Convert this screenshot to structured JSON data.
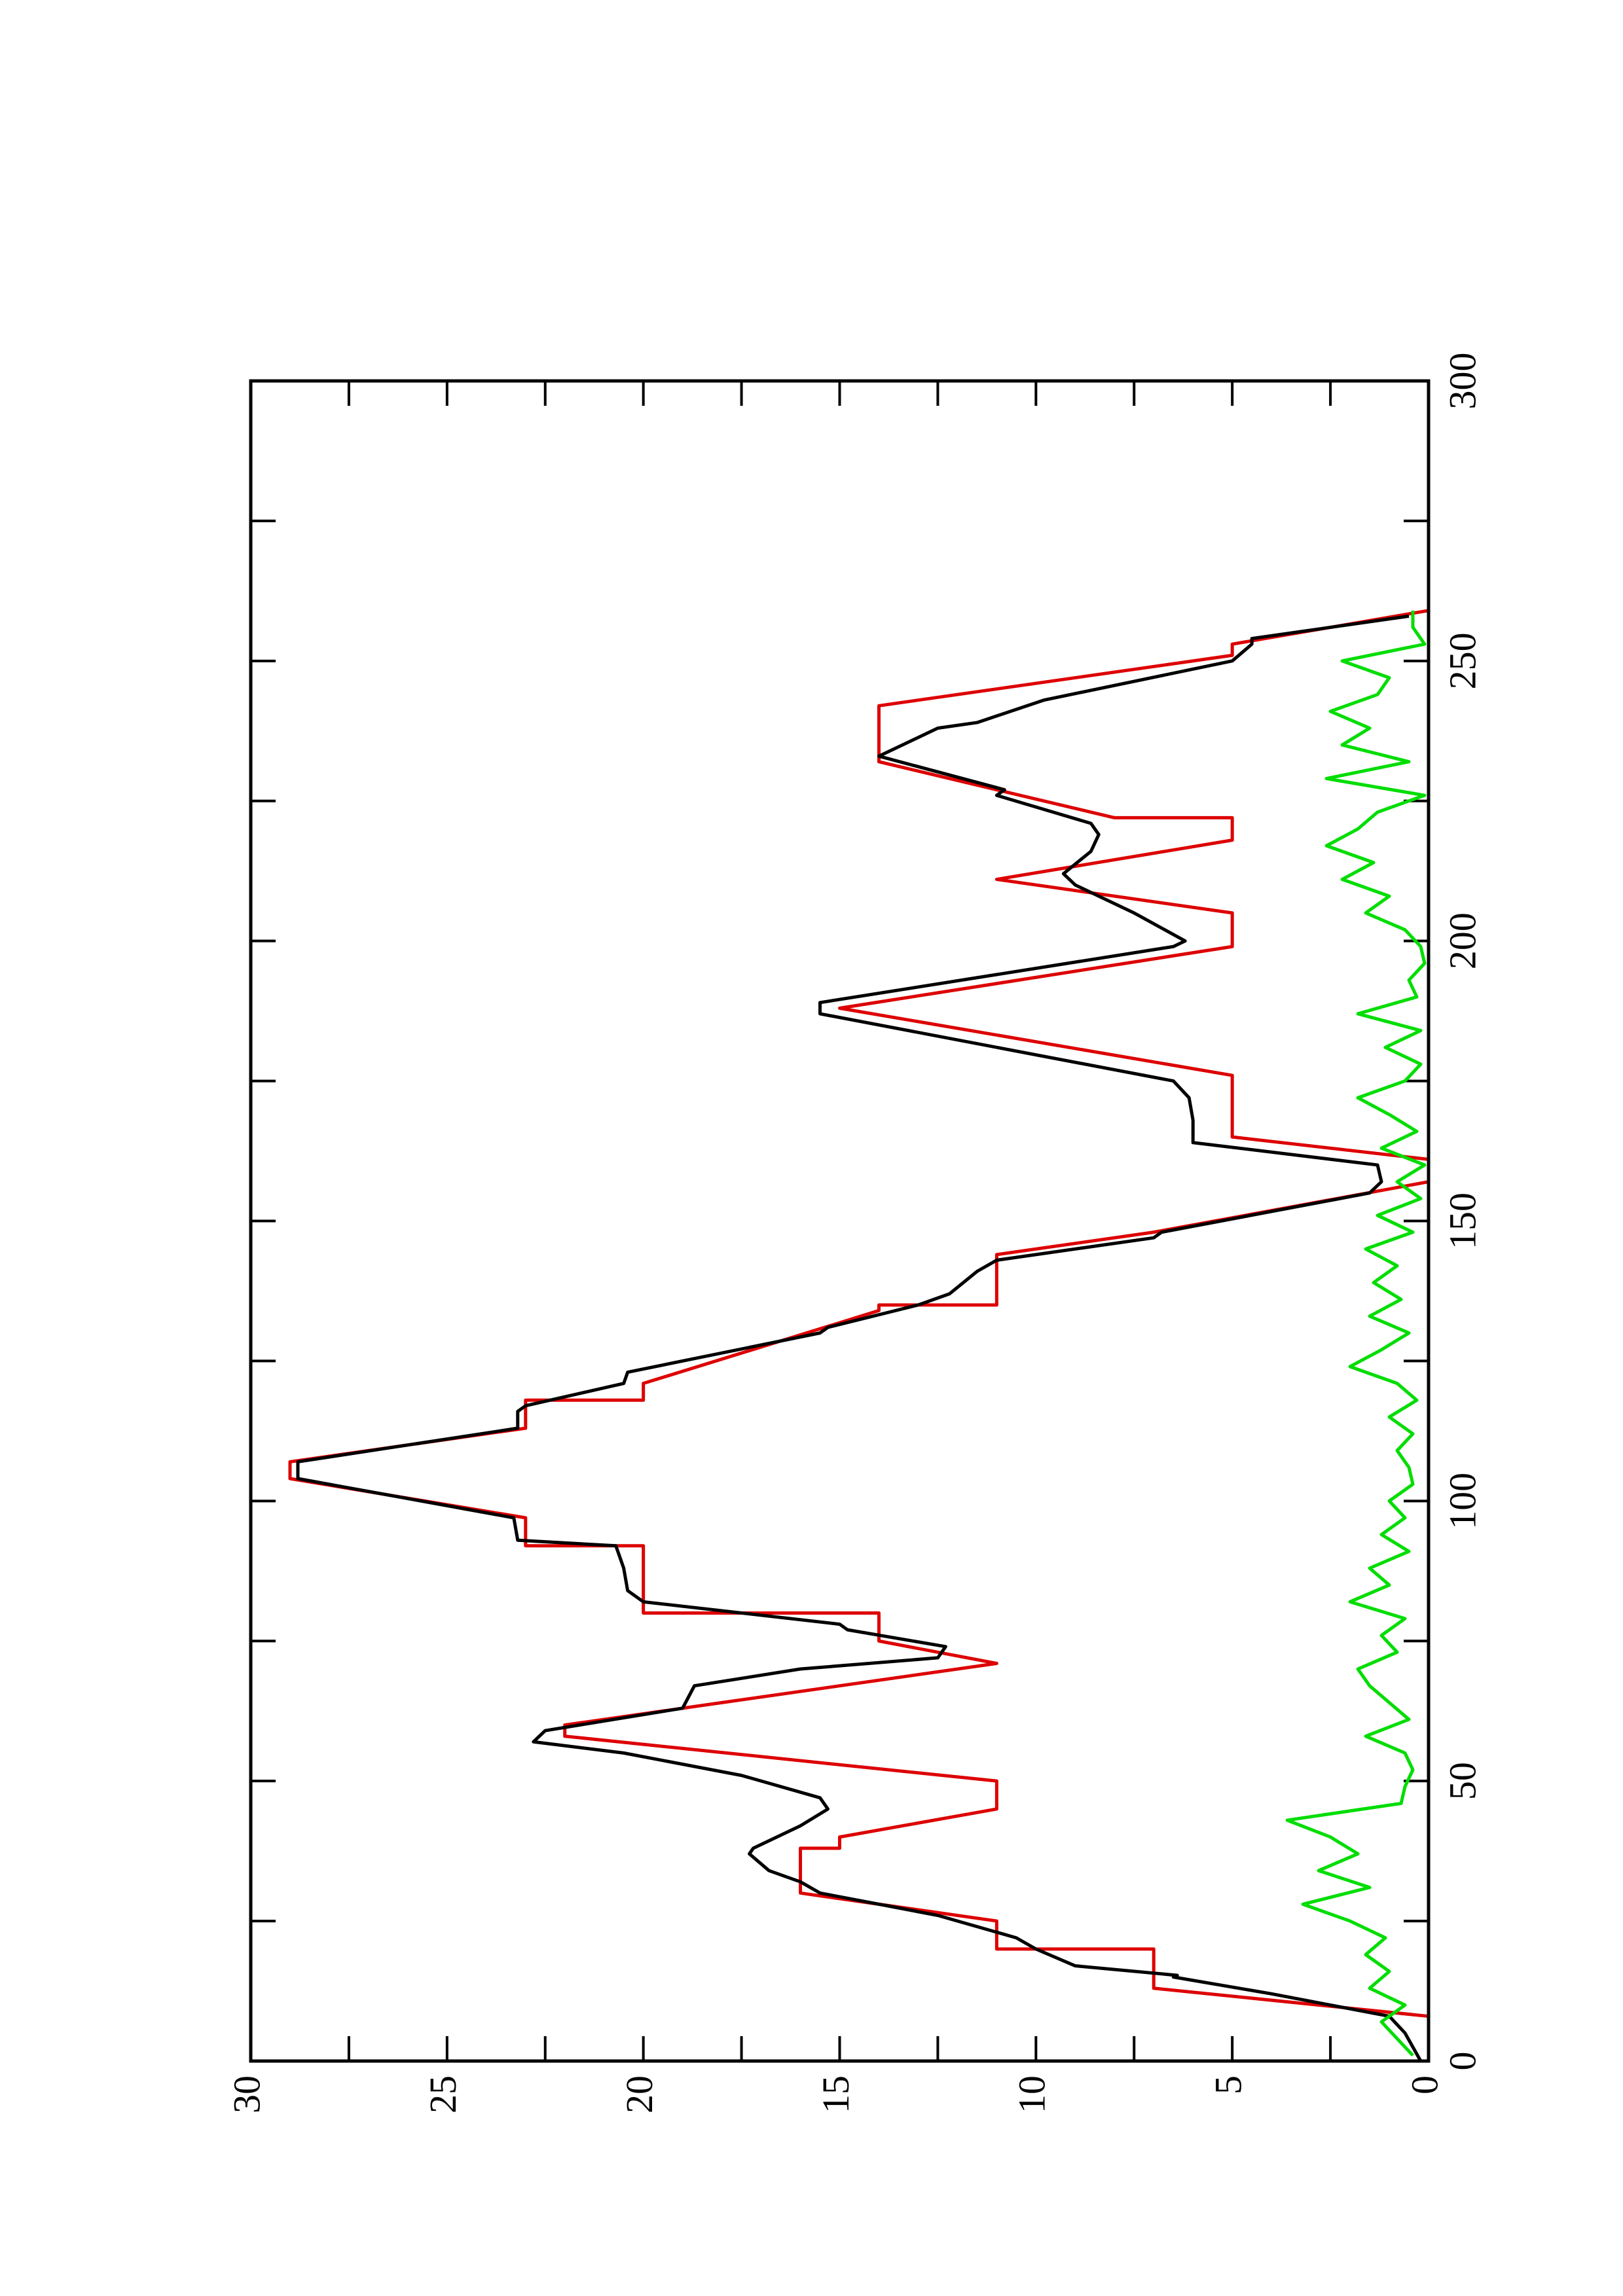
{
  "chart_data": {
    "type": "line",
    "rotation": -90,
    "xlim": [
      0,
      300
    ],
    "xticks": [
      0,
      50,
      100,
      150,
      200,
      250,
      300
    ],
    "minor_xticks": [
      25,
      75,
      125,
      175,
      225,
      275
    ],
    "ylim": [
      0,
      30
    ],
    "yticks": [
      0,
      5,
      10,
      15,
      20,
      25,
      30
    ],
    "minor_yticks": [
      2.5,
      7.5,
      12.5,
      17.5,
      22.5,
      27.5
    ],
    "mirror_ticks": true,
    "series": [
      {
        "color": "#dd0000",
        "x": [
          8,
          13,
          20,
          20,
          25,
          30,
          38,
          38,
          40,
          45,
          50,
          58,
          60,
          64,
          71,
          75,
          80,
          80,
          92,
          92,
          97,
          104,
          107,
          113,
          118,
          118,
          121,
          134,
          135,
          135,
          144,
          148,
          157,
          161,
          165,
          176,
          188,
          199,
          205,
          211,
          218,
          222,
          222,
          232,
          242,
          251,
          253,
          259
        ],
        "values": [
          0,
          7,
          7,
          11,
          11,
          16,
          16,
          15,
          15,
          11,
          11,
          22,
          22,
          18,
          11,
          14,
          14,
          20,
          20,
          23,
          23,
          29,
          29,
          23,
          23,
          20,
          20,
          14,
          14,
          11,
          11,
          7,
          0,
          0,
          5,
          5,
          15,
          5,
          5,
          11,
          5,
          5,
          8,
          14,
          14,
          5,
          5,
          0
        ]
      },
      {
        "color": "#000000",
        "x": [
          0,
          5,
          8,
          12,
          15,
          15.3,
          17,
          20,
          22,
          26,
          30,
          32,
          34,
          37,
          38,
          42,
          45,
          47,
          51,
          55,
          57,
          59,
          63,
          67,
          70,
          72,
          74,
          77,
          78,
          82,
          84,
          88,
          92,
          93,
          97,
          104,
          107,
          113,
          116,
          117,
          121,
          123,
          130,
          131,
          135,
          137,
          141,
          143,
          147,
          148,
          155,
          157,
          160,
          164,
          168,
          172,
          175,
          187,
          189,
          199,
          200,
          205,
          210,
          212,
          216,
          219,
          221,
          226,
          227,
          233,
          234,
          238,
          239,
          243,
          250,
          253,
          254,
          258
        ],
        "values": [
          0.2,
          0.6,
          1,
          4,
          6.5,
          6.4,
          9,
          10,
          10.5,
          12.5,
          15.5,
          16,
          16.8,
          17.3,
          17.2,
          16,
          15.3,
          15.5,
          17.5,
          20.5,
          22.8,
          22.5,
          19,
          18.7,
          16,
          12.5,
          12.3,
          14.8,
          15,
          20,
          20.4,
          20.5,
          20.7,
          23.2,
          23.3,
          28.8,
          28.8,
          23.2,
          23.2,
          23,
          20.5,
          20.4,
          15.5,
          15.3,
          13,
          12.2,
          11.5,
          11,
          7,
          6.8,
          1.5,
          1.2,
          1.3,
          6,
          6,
          6.1,
          6.5,
          15.5,
          15.5,
          6.5,
          6.2,
          7.5,
          9,
          9.3,
          8.6,
          8.4,
          8.6,
          11,
          10.8,
          14,
          13.7,
          12.5,
          11.5,
          9.8,
          5,
          4.5,
          4.5,
          0.5
        ]
      },
      {
        "color": "#00dd00",
        "x": [
          1,
          4,
          7,
          10,
          13,
          16,
          19,
          22,
          25,
          28,
          31,
          34,
          37,
          40,
          43,
          46,
          49,
          52,
          55,
          58,
          61,
          64,
          67,
          70,
          73,
          76,
          79,
          82,
          85,
          88,
          91,
          94,
          97,
          100,
          103,
          106,
          109,
          112,
          115,
          118,
          121,
          124,
          127,
          130,
          133,
          136,
          139,
          142,
          145,
          148,
          151,
          154,
          157,
          160,
          163,
          166,
          169,
          172,
          175,
          178,
          181,
          184,
          187,
          190,
          193,
          196,
          199,
          202,
          205,
          208,
          211,
          214,
          217,
          220,
          223,
          226,
          229,
          232,
          235,
          238,
          241,
          244,
          247,
          250,
          253,
          256,
          259
        ],
        "values": [
          0.4,
          0.8,
          1.2,
          0.6,
          1.5,
          1.0,
          1.6,
          1.1,
          2.0,
          3.2,
          1.5,
          2.8,
          1.8,
          2.5,
          3.6,
          0.7,
          0.6,
          0.4,
          0.6,
          1.6,
          0.5,
          1.0,
          1.5,
          1.8,
          0.8,
          1.2,
          0.6,
          2.0,
          1.0,
          1.5,
          0.5,
          1.2,
          0.6,
          1.0,
          0.4,
          0.5,
          0.8,
          0.4,
          1.0,
          0.3,
          0.8,
          2.0,
          1.2,
          0.5,
          1.5,
          0.7,
          1.4,
          0.8,
          1.6,
          0.4,
          1.3,
          0.2,
          0.8,
          0.1,
          1.2,
          0.3,
          1.0,
          1.8,
          0.6,
          0.2,
          1.1,
          0.2,
          1.8,
          0.3,
          0.5,
          0.1,
          0.2,
          0.6,
          1.6,
          1.0,
          2.2,
          1.4,
          2.6,
          1.8,
          1.3,
          0.1,
          2.6,
          0.5,
          2.2,
          1.5,
          2.5,
          1.3,
          1.0,
          2.2,
          0.1,
          0.4,
          0.4
        ]
      }
    ]
  }
}
